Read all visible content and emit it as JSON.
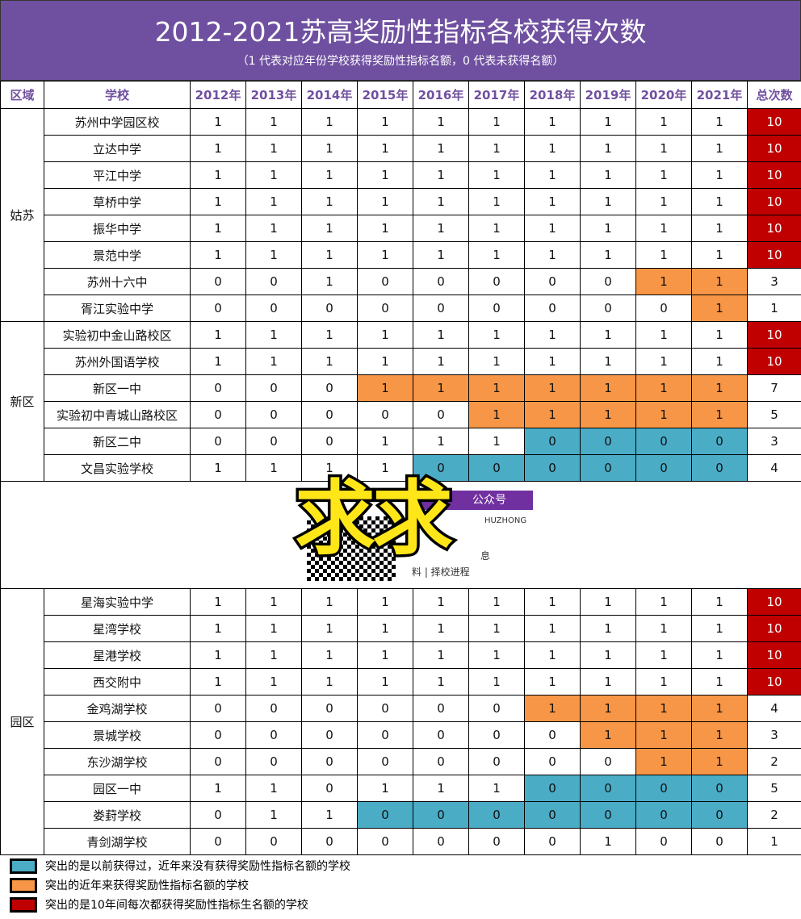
{
  "title": "2012-2021苏高奖励性指标各校获得次数",
  "subtitle": "（1 代表对应年份学校获得奖励性指标名额，0 代表未获得名额）",
  "headers": {
    "region": "区域",
    "school": "学校",
    "years": [
      "2012年",
      "2013年",
      "2014年",
      "2015年",
      "2016年",
      "2017年",
      "2018年",
      "2019年",
      "2020年",
      "2021年"
    ],
    "total": "总次数"
  },
  "colors": {
    "header": "#6f50a0",
    "red": "#c00000",
    "orange": "#f79646",
    "blue": "#4bacc6"
  },
  "regions": [
    {
      "name": "姑苏",
      "rows": [
        {
          "school": "苏州中学园区校",
          "values": [
            1,
            1,
            1,
            1,
            1,
            1,
            1,
            1,
            1,
            1
          ],
          "hl": "..........",
          "total": 10,
          "total_hl": "r"
        },
        {
          "school": "立达中学",
          "values": [
            1,
            1,
            1,
            1,
            1,
            1,
            1,
            1,
            1,
            1
          ],
          "hl": "..........",
          "total": 10,
          "total_hl": "r"
        },
        {
          "school": "平江中学",
          "values": [
            1,
            1,
            1,
            1,
            1,
            1,
            1,
            1,
            1,
            1
          ],
          "hl": "..........",
          "total": 10,
          "total_hl": "r"
        },
        {
          "school": "草桥中学",
          "values": [
            1,
            1,
            1,
            1,
            1,
            1,
            1,
            1,
            1,
            1
          ],
          "hl": "..........",
          "total": 10,
          "total_hl": "r"
        },
        {
          "school": "振华中学",
          "values": [
            1,
            1,
            1,
            1,
            1,
            1,
            1,
            1,
            1,
            1
          ],
          "hl": "..........",
          "total": 10,
          "total_hl": "r"
        },
        {
          "school": "景范中学",
          "values": [
            1,
            1,
            1,
            1,
            1,
            1,
            1,
            1,
            1,
            1
          ],
          "hl": "..........",
          "total": 10,
          "total_hl": "r"
        },
        {
          "school": "苏州十六中",
          "values": [
            0,
            0,
            1,
            0,
            0,
            0,
            0,
            0,
            1,
            1
          ],
          "hl": "........oo",
          "total": 3,
          "total_hl": ""
        },
        {
          "school": "胥江实验中学",
          "values": [
            0,
            0,
            0,
            0,
            0,
            0,
            0,
            0,
            0,
            1
          ],
          "hl": ".........o",
          "total": 1,
          "total_hl": ""
        }
      ]
    },
    {
      "name": "新区",
      "rows": [
        {
          "school": "实验初中金山路校区",
          "values": [
            1,
            1,
            1,
            1,
            1,
            1,
            1,
            1,
            1,
            1
          ],
          "hl": "..........",
          "total": 10,
          "total_hl": "r"
        },
        {
          "school": "苏州外国语学校",
          "values": [
            1,
            1,
            1,
            1,
            1,
            1,
            1,
            1,
            1,
            1
          ],
          "hl": "..........",
          "total": 10,
          "total_hl": "r"
        },
        {
          "school": "新区一中",
          "values": [
            0,
            0,
            0,
            1,
            1,
            1,
            1,
            1,
            1,
            1
          ],
          "hl": "...ooooooo",
          "total": 7,
          "total_hl": ""
        },
        {
          "school": "实验初中青城山路校区",
          "values": [
            0,
            0,
            0,
            0,
            0,
            1,
            1,
            1,
            1,
            1
          ],
          "hl": ".....ooooo",
          "total": 5,
          "total_hl": ""
        },
        {
          "school": "新区二中",
          "values": [
            0,
            0,
            0,
            1,
            1,
            1,
            0,
            0,
            0,
            0
          ],
          "hl": "......bbbb",
          "total": 3,
          "total_hl": ""
        },
        {
          "school": "文昌实验学校",
          "values": [
            1,
            1,
            1,
            1,
            0,
            0,
            0,
            0,
            0,
            0
          ],
          "hl": "....bbbbbb",
          "total": 4,
          "total_hl": ""
        }
      ]
    },
    {
      "name": "园区",
      "rows": [
        {
          "school": "星海实验中学",
          "values": [
            1,
            1,
            1,
            1,
            1,
            1,
            1,
            1,
            1,
            1
          ],
          "hl": "..........",
          "total": 10,
          "total_hl": "r"
        },
        {
          "school": "星湾学校",
          "values": [
            1,
            1,
            1,
            1,
            1,
            1,
            1,
            1,
            1,
            1
          ],
          "hl": "..........",
          "total": 10,
          "total_hl": "r"
        },
        {
          "school": "星港学校",
          "values": [
            1,
            1,
            1,
            1,
            1,
            1,
            1,
            1,
            1,
            1
          ],
          "hl": "..........",
          "total": 10,
          "total_hl": "r"
        },
        {
          "school": "西交附中",
          "values": [
            1,
            1,
            1,
            1,
            1,
            1,
            1,
            1,
            1,
            1
          ],
          "hl": "..........",
          "total": 10,
          "total_hl": "r"
        },
        {
          "school": "金鸡湖学校",
          "values": [
            0,
            0,
            0,
            0,
            0,
            0,
            1,
            1,
            1,
            1
          ],
          "hl": "......oooo",
          "total": 4,
          "total_hl": ""
        },
        {
          "school": "景城学校",
          "values": [
            0,
            0,
            0,
            0,
            0,
            0,
            0,
            1,
            1,
            1
          ],
          "hl": ".......ooo",
          "total": 3,
          "total_hl": ""
        },
        {
          "school": "东沙湖学校",
          "values": [
            0,
            0,
            0,
            0,
            0,
            0,
            0,
            0,
            1,
            1
          ],
          "hl": "........oo",
          "total": 2,
          "total_hl": ""
        },
        {
          "school": "园区一中",
          "values": [
            1,
            1,
            0,
            1,
            1,
            1,
            0,
            0,
            0,
            0
          ],
          "hl": "......bbbb",
          "total": 5,
          "total_hl": ""
        },
        {
          "school": "娄葑学校",
          "values": [
            0,
            1,
            1,
            0,
            0,
            0,
            0,
            0,
            0,
            0
          ],
          "hl": "...bbbbbbb",
          "total": 2,
          "total_hl": ""
        },
        {
          "school": "青剑湖学校",
          "values": [
            0,
            0,
            0,
            0,
            0,
            0,
            0,
            1,
            0,
            0
          ],
          "hl": "..........",
          "total": 1,
          "total_hl": ""
        }
      ]
    }
  ],
  "overlay": {
    "sticker": "求求",
    "tag": "公众号",
    "en": "HUZHONG",
    "line1": "息",
    "line2": "料 | 择校进程"
  },
  "legend": [
    {
      "color": "#4bacc6",
      "text": "突出的是以前获得过，近年来没有获得奖励性指标名额的学校"
    },
    {
      "color": "#f79646",
      "text": "突出的近年来获得奖励性指标名额的学校"
    },
    {
      "color": "#c00000",
      "text": "突出的是10年间每次都获得奖励性指标生名额的学校"
    }
  ]
}
